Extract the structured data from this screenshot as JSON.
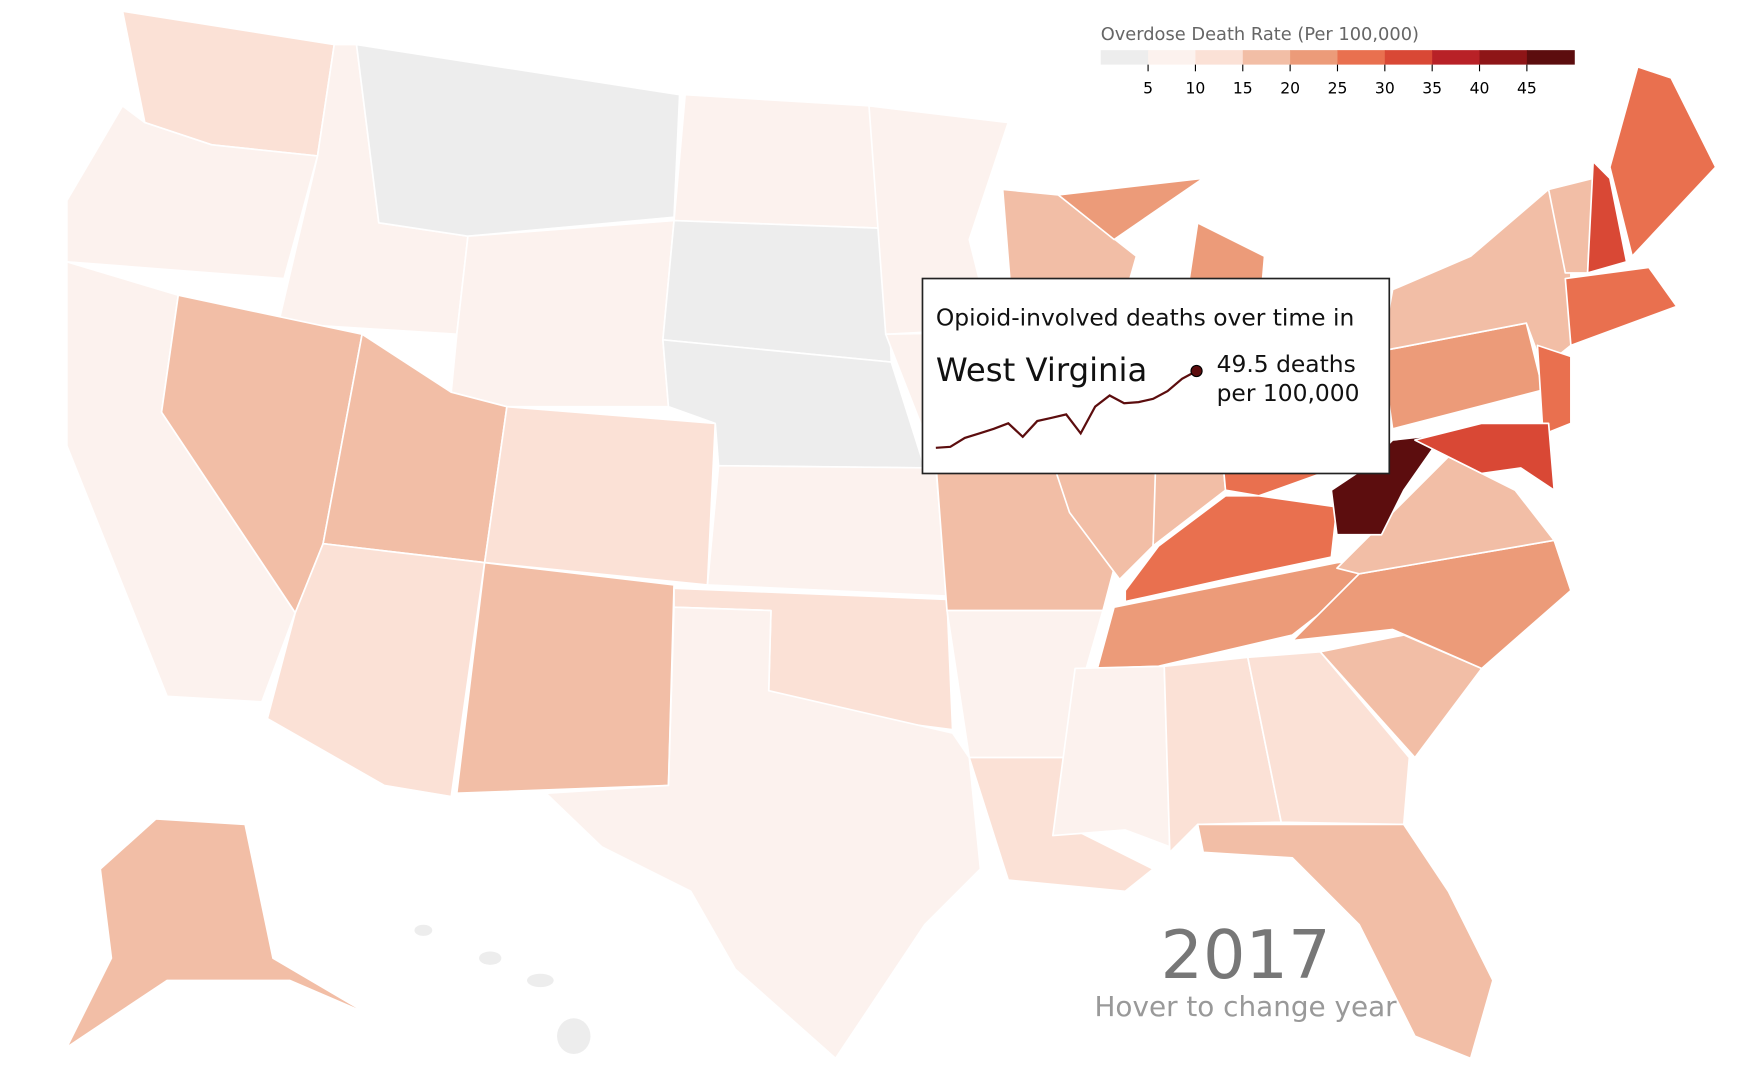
{
  "legend": {
    "title": "Overdose Death Rate (Per 100,000)",
    "lim": [
      0,
      50
    ],
    "ticks": [
      5,
      10,
      15,
      20,
      25,
      30,
      35,
      40,
      45
    ],
    "colors": [
      "#ededed",
      "#fcf2ee",
      "#fbe1d6",
      "#f2bea6",
      "#ec9b79",
      "#e9704f",
      "#d94835",
      "#b82127",
      "#8e1517",
      "#5c0d0e"
    ]
  },
  "tooltip": {
    "title": "Opioid-involved deaths over time in",
    "state": "West Virginia",
    "value_label": "49.5 deaths",
    "unit": "per 100,000",
    "trend": [
      2.1,
      2.7,
      8.2,
      11.0,
      13.8,
      17.2,
      8.9,
      18.6,
      20.6,
      22.7,
      11.0,
      27.5,
      34.4,
      29.6,
      30.3,
      32.3,
      37.1,
      44.7,
      49.5
    ],
    "color": "#5c0d0e"
  },
  "year": 2017,
  "hint": "Hover to change year"
}
